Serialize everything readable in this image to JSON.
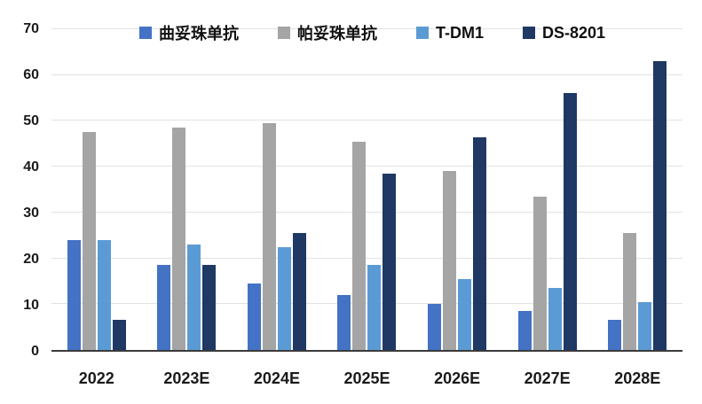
{
  "chart_data": {
    "type": "bar",
    "title": "",
    "xlabel": "",
    "ylabel": "",
    "categories": [
      "2022",
      "2023E",
      "2024E",
      "2025E",
      "2026E",
      "2027E",
      "2028E"
    ],
    "series": [
      {
        "name": "曲妥珠单抗",
        "color": "#4472C4",
        "values": [
          24,
          18.5,
          14.5,
          12,
          10,
          8.5,
          6.5
        ]
      },
      {
        "name": "帕妥珠单抗",
        "color": "#A5A5A5",
        "values": [
          47.5,
          48.5,
          49.5,
          45.5,
          39,
          33.5,
          25.5
        ]
      },
      {
        "name": "T-DM1",
        "color": "#5B9BD5",
        "values": [
          24,
          23,
          22.5,
          18.5,
          15.5,
          13.5,
          10.5
        ]
      },
      {
        "name": "DS-8201",
        "color": "#1F3864",
        "values": [
          6.5,
          18.5,
          25.5,
          38.5,
          46.5,
          56,
          63
        ]
      }
    ],
    "ylim": [
      0,
      70
    ],
    "ytick_step": 10,
    "grid": true,
    "legend_position": "top"
  }
}
